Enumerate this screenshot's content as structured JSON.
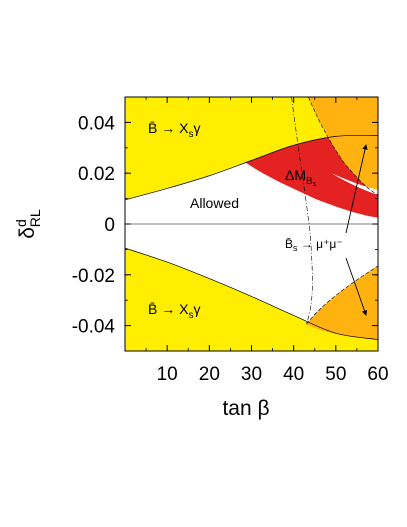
{
  "chart_data": {
    "type": "area",
    "title": "",
    "xlabel": "tan β",
    "ylabel": "δ^d_RL",
    "xlim": [
      0,
      60
    ],
    "ylim": [
      -0.05,
      0.05
    ],
    "xticks": [
      10,
      20,
      30,
      40,
      50,
      60
    ],
    "yticks": [
      0.04,
      0.02,
      0,
      -0.02,
      -0.04
    ],
    "xtick_labels": [
      "10",
      "20",
      "30",
      "40",
      "50",
      "60"
    ],
    "ytick_labels": [
      "0.04",
      "0.02",
      "0",
      "-0.02",
      "-0.04"
    ],
    "regions": [
      {
        "label": "B̄ → X_sγ",
        "label_parts": {
          "main": "B̄ → X",
          "sub": "s",
          "tail": "γ"
        },
        "color": "#ffee00",
        "boundary": {
          "x": [
            0,
            10,
            20,
            30,
            40,
            50,
            60
          ],
          "y": [
            0.0095,
            0.014,
            0.019,
            0.025,
            0.031,
            0.0345,
            0.0348
          ]
        }
      },
      {
        "label": "B̄ → X_sγ",
        "label_parts": {
          "main": "B̄ → X",
          "sub": "s",
          "tail": "γ"
        },
        "color": "#ffee00",
        "boundary": {
          "x": [
            0,
            10,
            20,
            30,
            40,
            50,
            60
          ],
          "y": [
            -0.0095,
            -0.015,
            -0.0215,
            -0.0285,
            -0.036,
            -0.043,
            -0.0455
          ]
        }
      },
      {
        "label": "ΔM_Bs",
        "label_parts": {
          "main": "ΔM",
          "sub": "B",
          "subsub": "s"
        },
        "color": "#e52222",
        "boundary": {
          "x": [
            45,
            50,
            55,
            60
          ],
          "y": [
            0.01,
            0.0065,
            0.004,
            0.0025
          ]
        }
      },
      {
        "label": "B̄_s → μ⁺μ⁻",
        "label_parts": {
          "main": "B̄",
          "sub": "s",
          "tail": " → μ⁺μ⁻"
        },
        "color": "#ffb210"
      },
      {
        "label": "Allowed",
        "color": "#ffffff"
      }
    ]
  },
  "colors": {
    "bsg": "#ffee00",
    "dmbs": "#e52222",
    "bsmumu": "#ffb210",
    "allowed": "#ffffff"
  }
}
